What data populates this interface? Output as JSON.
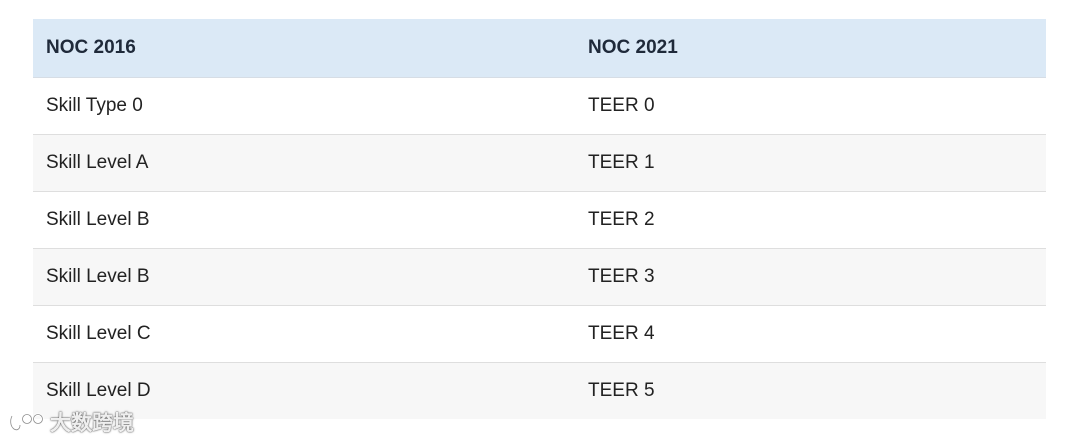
{
  "table": {
    "headers": [
      "NOC 2016",
      "NOC 2021"
    ],
    "rows": [
      [
        "Skill Type 0",
        "TEER 0"
      ],
      [
        "Skill Level A",
        "TEER 1"
      ],
      [
        "Skill Level B",
        "TEER 2"
      ],
      [
        "Skill Level B",
        "TEER 3"
      ],
      [
        "Skill Level C",
        "TEER 4"
      ],
      [
        "Skill Level D",
        "TEER 5"
      ]
    ]
  },
  "colors": {
    "header_bg": "#dbe9f6",
    "row_alt_bg": "#f7f7f7",
    "divider": "#dedede"
  },
  "watermark": {
    "icon": "brand-logo-icon",
    "text": "大数跨境"
  }
}
